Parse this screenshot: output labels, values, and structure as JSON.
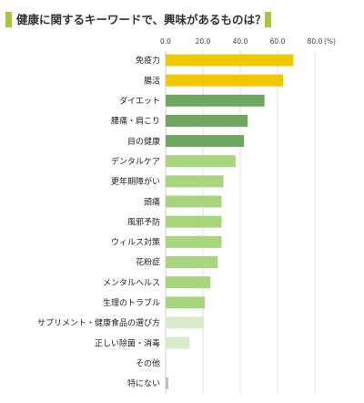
{
  "chart_data": {
    "type": "bar",
    "orientation": "horizontal",
    "title": "健康に関するキーワードで、興味があるものは？",
    "unit": "(%)",
    "xlim": [
      0,
      80
    ],
    "xticks": [
      0,
      20,
      40,
      60,
      80
    ],
    "xtick_labels": [
      "0.0",
      "20.0",
      "40.0",
      "60.0",
      "80.0"
    ],
    "grid": true,
    "categories": [
      "免疫力",
      "腸活",
      "ダイエット",
      "腰痛・肩こり",
      "目の健康",
      "デンタルケア",
      "更年期障がい",
      "頭痛",
      "風邪予防",
      "ウィルス対策",
      "花粉症",
      "メンタルヘルス",
      "生理のトラブル",
      "サプリメント・健康食品の選び方",
      "正しい除菌・消毒",
      "その他",
      "特にない"
    ],
    "values": [
      68.5,
      63,
      53,
      44,
      42,
      37.5,
      31,
      30,
      30,
      30,
      28,
      24,
      21,
      20.5,
      13,
      0,
      1.5
    ],
    "bar_colors": [
      "#f0c800",
      "#f0c800",
      "#6da760",
      "#6da760",
      "#6da760",
      "#a8d67e",
      "#a8d67e",
      "#a8d67e",
      "#a8d67e",
      "#a8d67e",
      "#a8d67e",
      "#a8d67e",
      "#a8d67e",
      "#d9ebc8",
      "#d9ebc8",
      "#bfbfbf",
      "#bfbfbf"
    ]
  }
}
